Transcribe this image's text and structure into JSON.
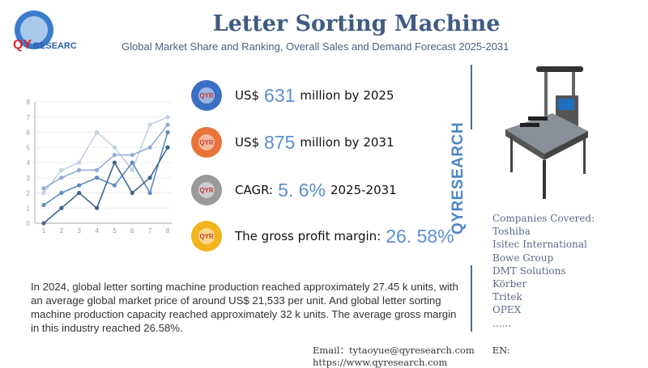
{
  "header": {
    "brand": "QYRESEARCH",
    "title": "Letter Sorting Machine",
    "subtitle": "Global Market Share and Ranking, Overall Sales and Demand Forecast 2025-2031"
  },
  "kpis": [
    {
      "prefix": "US$",
      "value": "631",
      "suffix": "million by 2025",
      "color": "#3a6fc4"
    },
    {
      "prefix": "US$",
      "value": "875",
      "suffix": "million by 2031",
      "color": "#e8743a"
    },
    {
      "prefix": "CAGR:",
      "value": "5. 6%",
      "suffix": "2025-2031",
      "color": "#9a9a9a"
    },
    {
      "prefix": "The gross profit margin:",
      "value": "26. 58%",
      "suffix": "",
      "color": "#f2b31c"
    }
  ],
  "vertical_brand": "QYRESEARCH",
  "companies": {
    "heading": "Companies Covered:",
    "items": [
      "Toshiba",
      "Isitec International",
      "Bowe Group",
      "DMT Solutions",
      "Körber",
      "Tritek",
      "OPEX",
      "......"
    ]
  },
  "paragraph": "In 2024, global letter sorting machine production reached approximately 27.45 k units, with an average global market price of around US$ 21,533 per unit. And global letter sorting machine production capacity reached approximately 32 k units. The average gross margin in this industry reached 26.58%.",
  "footer": {
    "email": "Email：tytaoyue@qyresearch.com",
    "web": "EN: https://www.qyresearch.com"
  },
  "chart_data": {
    "type": "line",
    "x": [
      1,
      2,
      3,
      4,
      5,
      6,
      7,
      8
    ],
    "ylim": [
      0,
      8
    ],
    "yticks": [
      0,
      1,
      2,
      3,
      4,
      5,
      6,
      7,
      8
    ],
    "grid": true,
    "series": [
      {
        "color": "#c3d0e6",
        "values": [
          2,
          3.5,
          4,
          6,
          5,
          3.5,
          6.5,
          7
        ]
      },
      {
        "color": "#94acd3",
        "values": [
          2.3,
          3,
          3.5,
          3.5,
          4.5,
          4.5,
          5,
          6.5
        ]
      },
      {
        "color": "#5c8cc0",
        "values": [
          1.2,
          2,
          2.5,
          3,
          2.5,
          4,
          2,
          6
        ]
      },
      {
        "color": "#3e6690",
        "values": [
          0,
          1,
          2,
          1,
          4,
          2,
          3,
          5
        ]
      }
    ]
  }
}
